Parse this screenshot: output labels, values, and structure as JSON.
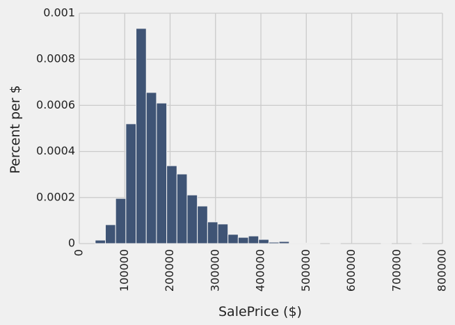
{
  "chart_data": {
    "type": "histogram",
    "x_label": "SalePrice ($)",
    "y_label": "Percent per $",
    "bins": [
      35000,
      57500,
      80000,
      102500,
      125000,
      147500,
      170000,
      192500,
      215000,
      237500,
      260000,
      282500,
      305000,
      327500,
      350000,
      372500,
      395000,
      417500,
      440000,
      462500,
      485000,
      507500,
      530000,
      552500,
      575000,
      597500,
      620000,
      642500,
      665000,
      687500,
      710000,
      732500,
      755000
    ],
    "values": [
      1.5e-05,
      8.2e-05,
      0.000196,
      0.00052,
      0.000934,
      0.000656,
      0.00061,
      0.000338,
      0.000302,
      0.000211,
      0.000163,
      9.4e-05,
      8.5e-05,
      4e-05,
      2.7e-05,
      3.3e-05,
      1.8e-05,
      6e-06,
      9e-06,
      3e-06,
      2e-06,
      1e-06,
      0,
      1e-06,
      0,
      0,
      0,
      0,
      1e-06,
      0,
      0,
      1e-06
    ],
    "color": "#3f5475",
    "xlim": [
      0,
      800000
    ],
    "xticks": [
      0,
      100000,
      200000,
      300000,
      400000,
      500000,
      600000,
      700000,
      800000
    ],
    "ylim": [
      0,
      0.001
    ],
    "yticks": [
      0,
      0.0002,
      0.0004,
      0.0006,
      0.0008,
      0.001
    ],
    "grid": true
  }
}
